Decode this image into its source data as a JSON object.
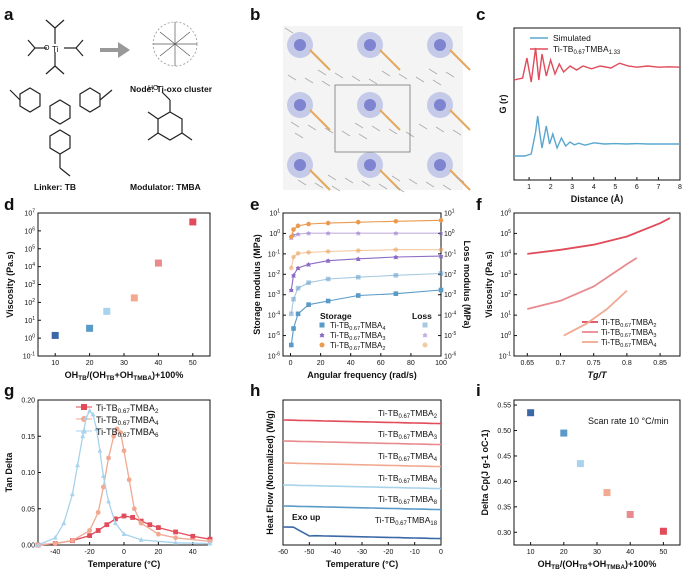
{
  "colors": {
    "red": "#e14b5a",
    "mid_red": "#e88a8e",
    "salmon": "#f1a991",
    "light_blue": "#a8d3ec",
    "blue": "#5a9ac6",
    "dark_blue": "#3b69a8",
    "purple": "#8c6bc5",
    "orange": "#eb9a4f",
    "teal_blue": "#5aa7d0"
  },
  "panel_labels": [
    "a",
    "b",
    "c",
    "d",
    "e",
    "f",
    "g",
    "h",
    "i"
  ],
  "panel_a": {
    "node_caption": "Node: Ti-oxo cluster",
    "linker_caption": "Linker: TB",
    "modulator_caption": "Modulator: TMBA",
    "atom_ti": "Ti",
    "atom_oh": "HO",
    "atom_o": "O"
  },
  "chart_data": [
    {
      "panel": "c",
      "type": "line",
      "xlabel": "Distance (Å)",
      "ylabel": "G (r)",
      "xlim": [
        0.3,
        8
      ],
      "xticks": [
        1,
        2,
        3,
        4,
        5,
        6,
        7,
        8
      ],
      "legend": [
        "Simulated",
        "Ti-TB0.67TMBA1.33"
      ],
      "series": [
        {
          "name": "Simulated",
          "color": "#5aa7d0",
          "x": [
            0.3,
            0.8,
            1.1,
            1.3,
            1.4,
            1.5,
            1.6,
            1.8,
            1.95,
            2.1,
            2.3,
            2.5,
            2.7,
            2.9,
            3.1,
            3.3,
            3.6,
            4.0,
            4.5,
            5.0,
            5.5,
            6.0,
            6.5,
            7.0,
            7.5,
            8.0
          ],
          "y": [
            0,
            0,
            0.05,
            0.6,
            1.0,
            0.55,
            0.2,
            0.75,
            0.3,
            0.55,
            0.2,
            0.45,
            0.25,
            0.35,
            0.28,
            0.32,
            0.27,
            0.33,
            0.3,
            0.31,
            0.3,
            0.31,
            0.3,
            0.3,
            0.3,
            0.3
          ]
        },
        {
          "name": "Ti-TB0.67TMBA1.33",
          "color": "#e14b5a",
          "x": [
            0.3,
            0.7,
            0.9,
            1.1,
            1.3,
            1.45,
            1.6,
            1.8,
            2.0,
            2.2,
            2.4,
            2.6,
            2.9,
            3.2,
            3.5,
            3.9,
            4.3,
            4.8,
            5.2,
            5.6,
            6.0,
            6.5,
            7.0,
            7.5,
            8.0
          ],
          "y": [
            0.2,
            0.25,
            0.75,
            0.15,
            1.0,
            0.2,
            0.85,
            0.3,
            0.7,
            0.35,
            0.6,
            0.4,
            0.55,
            0.45,
            0.55,
            0.48,
            0.55,
            0.5,
            0.62,
            0.55,
            0.52,
            0.55,
            0.52,
            0.53,
            0.52
          ]
        }
      ]
    },
    {
      "panel": "d",
      "type": "scatter",
      "xlabel": "OHTB/(OHTB+OHTMBA)+100%",
      "ylabel": "Viscosity (Pa.s)",
      "xlim": [
        5,
        55
      ],
      "ylim_log10": [
        -1,
        7
      ],
      "xticks": [
        10,
        20,
        30,
        40,
        50
      ],
      "yticks": [
        "10-1",
        "100",
        "101",
        "102",
        "103",
        "104",
        "105",
        "106",
        "107"
      ],
      "x": [
        10,
        20,
        25,
        33,
        40,
        50
      ],
      "log10_y": [
        0.15,
        0.55,
        1.5,
        2.25,
        4.2,
        6.5
      ],
      "colors": [
        "#3b69a8",
        "#5a9ac6",
        "#a8d3ec",
        "#f1a991",
        "#e88a8e",
        "#e14b5a"
      ]
    },
    {
      "panel": "e",
      "type": "line",
      "xlabel": "Angular frequency (rad/s)",
      "ylabel": "Storage modulus (MPa)",
      "ylabel_right": "Loss modulus (MPa)",
      "xlim": [
        -5,
        100
      ],
      "ylim_log10": [
        -6,
        1.5
      ],
      "xticks": [
        0,
        20,
        40,
        60,
        80,
        100
      ],
      "legend_headers": [
        "Storage",
        "Loss"
      ],
      "series": [
        {
          "name": "Ti-TB0.67TMBA4",
          "color": "#5a9ac6",
          "marker": "square",
          "storage_log10": [
            -5.7,
            -4.8,
            -4.0,
            -3.5,
            -3.3,
            -3.0,
            -2.9,
            -2.7
          ],
          "loss_log10": [
            -4.0,
            -3.2,
            -2.6,
            -2.3,
            -2.1,
            -2.0,
            -1.9,
            -1.8
          ]
        },
        {
          "name": "Ti-TB0.67TMBA3",
          "color": "#8c6bc5",
          "marker": "star",
          "storage_log10": [
            -2.7,
            -1.9,
            -1.5,
            -1.3,
            -1.1,
            -1.0,
            -0.9,
            -0.85
          ],
          "loss_log10": [
            0.15,
            0.3,
            0.35,
            0.4,
            0.4,
            0.4,
            0.4,
            0.4
          ]
        },
        {
          "name": "Ti-TB0.67TMBA2",
          "color": "#eb9a4f",
          "marker": "circle",
          "storage_log10": [
            0.2,
            0.6,
            0.8,
            0.9,
            0.95,
            1.0,
            1.05,
            1.1
          ],
          "loss_log10": [
            -1.5,
            -0.9,
            -0.7,
            -0.65,
            -0.6,
            -0.55,
            -0.5,
            -0.5
          ]
        }
      ],
      "x": [
        0.5,
        2,
        5,
        12,
        25,
        45,
        70,
        100
      ]
    },
    {
      "panel": "f",
      "type": "line",
      "xlabel": "Tg/T",
      "ylabel": "Viscosity (Pa.s)",
      "xlim": [
        0.63,
        0.88
      ],
      "ylim_log10": [
        -1,
        6
      ],
      "xticks": [
        0.65,
        0.7,
        0.75,
        0.8,
        0.85
      ],
      "series": [
        {
          "name": "Ti-TB0.67TMBA2",
          "color": "#e14b5a",
          "x": [
            0.65,
            0.7,
            0.75,
            0.8,
            0.85,
            0.865
          ],
          "log10_y": [
            4.0,
            4.2,
            4.45,
            4.85,
            5.5,
            5.75
          ]
        },
        {
          "name": "Ti-TB0.67TMBA3",
          "color": "#e88a8e",
          "x": [
            0.65,
            0.7,
            0.75,
            0.8,
            0.815
          ],
          "log10_y": [
            1.3,
            1.7,
            2.4,
            3.5,
            3.8
          ]
        },
        {
          "name": "Ti-TB0.67TMBA4",
          "color": "#f1a991",
          "x": [
            0.705,
            0.74,
            0.77,
            0.8
          ],
          "log10_y": [
            0.0,
            0.6,
            1.3,
            2.2
          ]
        }
      ]
    },
    {
      "panel": "g",
      "type": "line",
      "xlabel": "Temperature (°C)",
      "ylabel": "Tan Delta",
      "xlim": [
        -50,
        50
      ],
      "ylim": [
        0,
        0.2
      ],
      "xticks": [
        -40,
        -20,
        0,
        20,
        40
      ],
      "yticks": [
        0.0,
        0.05,
        0.1,
        0.15,
        0.2
      ],
      "series": [
        {
          "name": "Ti-TB0.67TMBA2",
          "color": "#e14b5a",
          "marker": "square",
          "x": [
            -50,
            -40,
            -30,
            -20,
            -15,
            -10,
            -5,
            0,
            5,
            10,
            15,
            20,
            30,
            40,
            50
          ],
          "y": [
            0.0,
            0.002,
            0.006,
            0.013,
            0.02,
            0.028,
            0.036,
            0.04,
            0.038,
            0.033,
            0.028,
            0.024,
            0.018,
            0.012,
            0.008
          ]
        },
        {
          "name": "Ti-TB0.67TMBA4",
          "color": "#f1a991",
          "marker": "circle",
          "x": [
            -50,
            -40,
            -30,
            -20,
            -15,
            -12,
            -9,
            -6,
            -4,
            -2,
            0,
            3,
            6,
            10,
            20,
            30,
            50
          ],
          "y": [
            0.0,
            0.002,
            0.006,
            0.02,
            0.045,
            0.08,
            0.12,
            0.15,
            0.16,
            0.155,
            0.13,
            0.09,
            0.05,
            0.03,
            0.015,
            0.01,
            0.005
          ]
        },
        {
          "name": "Ti-TB0.67TMBA6",
          "color": "#a8d3ec",
          "marker": "triangle",
          "x": [
            -50,
            -40,
            -35,
            -30,
            -27,
            -24,
            -22,
            -20,
            -18,
            -16,
            -14,
            -12,
            -9,
            -5,
            0,
            10,
            30,
            50
          ],
          "y": [
            0.0,
            0.01,
            0.03,
            0.07,
            0.11,
            0.15,
            0.175,
            0.185,
            0.18,
            0.16,
            0.13,
            0.095,
            0.06,
            0.03,
            0.015,
            0.007,
            0.003,
            0.002
          ]
        }
      ]
    },
    {
      "panel": "h",
      "type": "line",
      "xlabel": "Temperature (°C)",
      "ylabel": "Heat Flow (Normalized) (W/g)",
      "xlim": [
        -60,
        0
      ],
      "xticks": [
        -60,
        -50,
        -40,
        -30,
        -20,
        -10,
        0
      ],
      "annotation": "Exo up",
      "series": [
        {
          "name": "Ti-TB0.67TMBA2",
          "color": "#e14b5a"
        },
        {
          "name": "Ti-TB0.67TMBA3",
          "color": "#e88a8e"
        },
        {
          "name": "Ti-TB0.67TMBA4",
          "color": "#f1a991"
        },
        {
          "name": "Ti-TB0.67TMBA6",
          "color": "#a8d3ec"
        },
        {
          "name": "Ti-TB0.67TMBA8",
          "color": "#5a9ac6"
        },
        {
          "name": "Ti-TB0.67TMBA18",
          "color": "#3b69a8"
        }
      ]
    },
    {
      "panel": "i",
      "type": "scatter",
      "xlabel": "OHTB/(OHTB+OHTMBA)+100%",
      "ylabel": "Delta Cp(J g-1 oC-1)",
      "annotation": "Scan rate 10 °C/min",
      "xlim": [
        5,
        55
      ],
      "ylim": [
        0.275,
        0.56
      ],
      "xticks": [
        10,
        20,
        30,
        40,
        50
      ],
      "yticks": [
        0.3,
        0.35,
        0.4,
        0.45,
        0.5,
        0.55
      ],
      "x": [
        10,
        20,
        25,
        33,
        40,
        50
      ],
      "y": [
        0.535,
        0.495,
        0.435,
        0.378,
        0.335,
        0.302
      ],
      "colors": [
        "#3b69a8",
        "#5a9ac6",
        "#a8d3ec",
        "#f1a991",
        "#e88a8e",
        "#e14b5a"
      ]
    }
  ]
}
